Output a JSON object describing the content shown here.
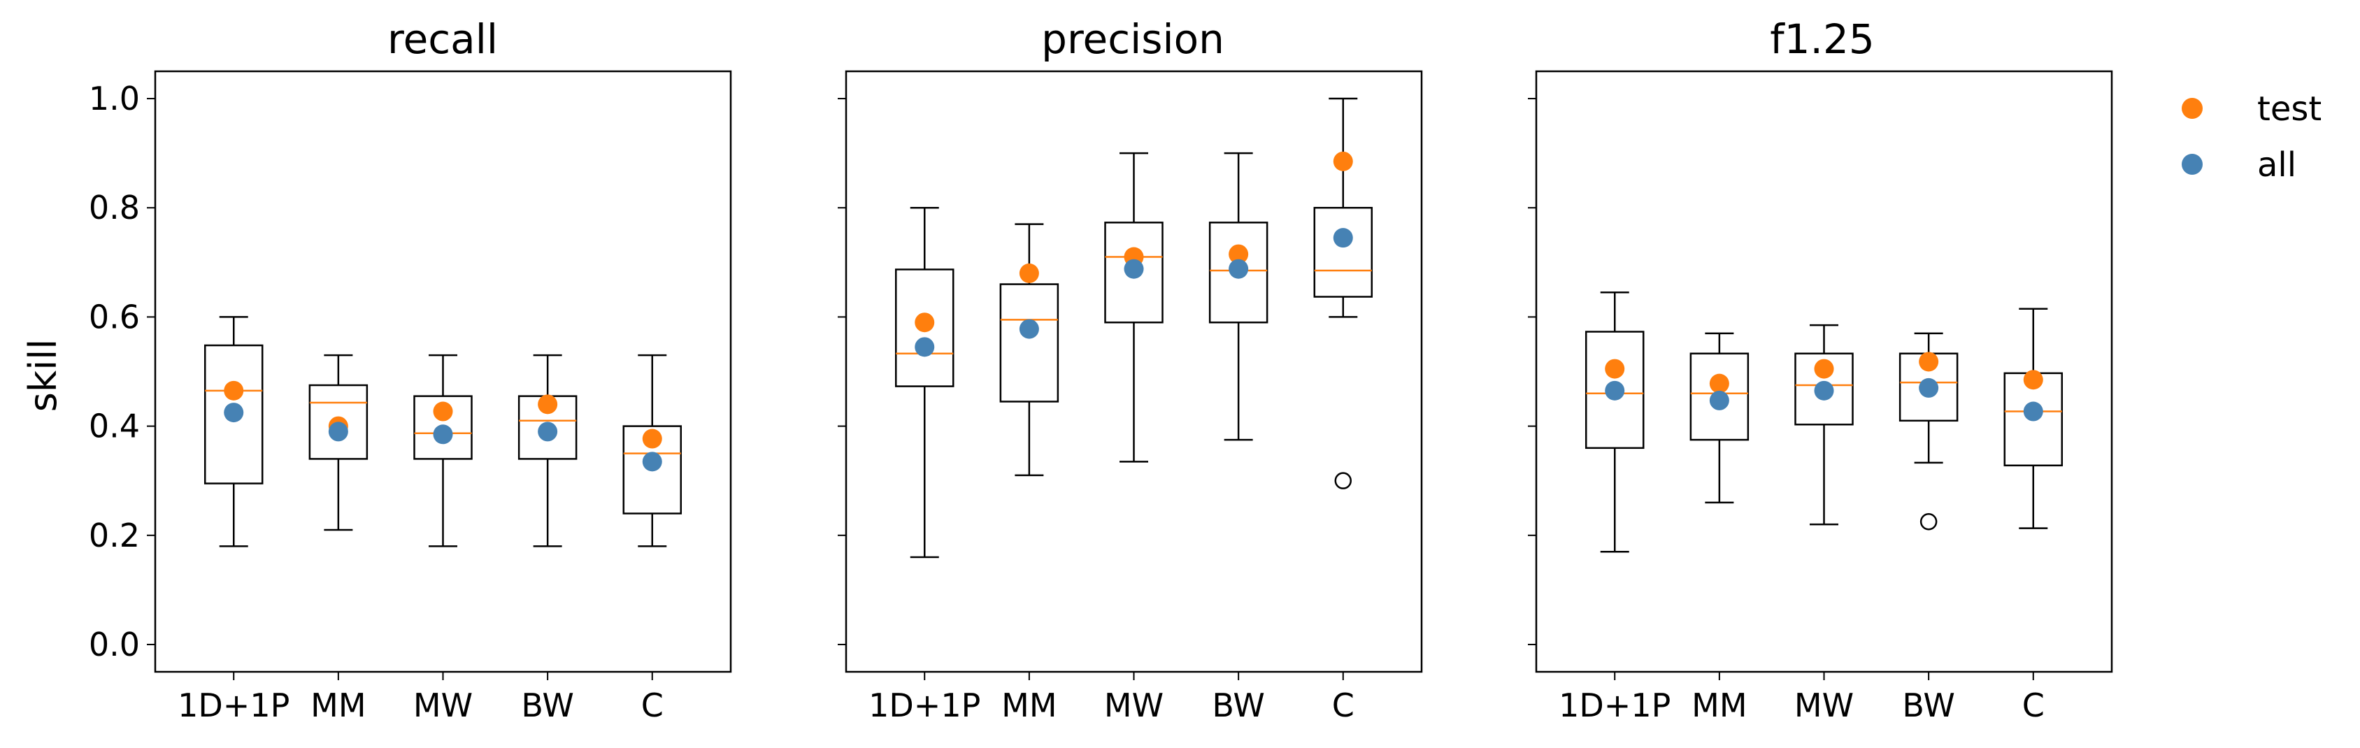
{
  "colors": {
    "test": "#ff7f0e",
    "all": "#4682b4",
    "median": "#ff7f0e",
    "box": "#000000"
  },
  "legend": {
    "position": "right",
    "entries": [
      {
        "name": "test",
        "color": "#ff7f0e"
      },
      {
        "name": "all",
        "color": "#4682b4"
      }
    ]
  },
  "chart_data": [
    {
      "type": "box",
      "title": "recall",
      "ylabel": "skill",
      "ylim": [
        -0.05,
        1.05
      ],
      "yticks": [
        "0.0",
        "0.2",
        "0.4",
        "0.6",
        "0.8",
        "1.0"
      ],
      "categories": [
        "1D+1P",
        "MM",
        "MW",
        "BW",
        "C"
      ],
      "boxes": [
        {
          "whislo": 0.18,
          "q1": 0.295,
          "med": 0.465,
          "q3": 0.548,
          "whishi": 0.6,
          "fliers": []
        },
        {
          "whislo": 0.21,
          "q1": 0.34,
          "med": 0.443,
          "q3": 0.475,
          "whishi": 0.53,
          "fliers": []
        },
        {
          "whislo": 0.18,
          "q1": 0.34,
          "med": 0.387,
          "q3": 0.455,
          "whishi": 0.53,
          "fliers": []
        },
        {
          "whislo": 0.18,
          "q1": 0.34,
          "med": 0.41,
          "q3": 0.455,
          "whishi": 0.53,
          "fliers": []
        },
        {
          "whislo": 0.18,
          "q1": 0.24,
          "med": 0.35,
          "q3": 0.4,
          "whishi": 0.53,
          "fliers": []
        }
      ],
      "series": [
        {
          "name": "test",
          "values": [
            0.465,
            0.4,
            0.427,
            0.44,
            0.377
          ]
        },
        {
          "name": "all",
          "values": [
            0.425,
            0.39,
            0.385,
            0.39,
            0.335
          ]
        }
      ]
    },
    {
      "type": "box",
      "title": "precision",
      "ylim": [
        -0.05,
        1.05
      ],
      "categories": [
        "1D+1P",
        "MM",
        "MW",
        "BW",
        "C"
      ],
      "boxes": [
        {
          "whislo": 0.16,
          "q1": 0.473,
          "med": 0.533,
          "q3": 0.687,
          "whishi": 0.8,
          "fliers": []
        },
        {
          "whislo": 0.31,
          "q1": 0.445,
          "med": 0.595,
          "q3": 0.66,
          "whishi": 0.77,
          "fliers": []
        },
        {
          "whislo": 0.335,
          "q1": 0.59,
          "med": 0.71,
          "q3": 0.773,
          "whishi": 0.9,
          "fliers": []
        },
        {
          "whislo": 0.375,
          "q1": 0.59,
          "med": 0.685,
          "q3": 0.773,
          "whishi": 0.9,
          "fliers": []
        },
        {
          "whislo": 0.6,
          "q1": 0.637,
          "med": 0.685,
          "q3": 0.8,
          "whishi": 1.0,
          "fliers": [
            0.3
          ]
        }
      ],
      "series": [
        {
          "name": "test",
          "values": [
            0.59,
            0.68,
            0.71,
            0.715,
            0.885
          ]
        },
        {
          "name": "all",
          "values": [
            0.545,
            0.578,
            0.688,
            0.688,
            0.745
          ]
        }
      ]
    },
    {
      "type": "box",
      "title": "f1.25",
      "ylim": [
        -0.05,
        1.05
      ],
      "categories": [
        "1D+1P",
        "MM",
        "MW",
        "BW",
        "C"
      ],
      "boxes": [
        {
          "whislo": 0.17,
          "q1": 0.36,
          "med": 0.46,
          "q3": 0.573,
          "whishi": 0.645,
          "fliers": []
        },
        {
          "whislo": 0.26,
          "q1": 0.375,
          "med": 0.46,
          "q3": 0.533,
          "whishi": 0.57,
          "fliers": []
        },
        {
          "whislo": 0.22,
          "q1": 0.403,
          "med": 0.475,
          "q3": 0.533,
          "whishi": 0.585,
          "fliers": []
        },
        {
          "whislo": 0.333,
          "q1": 0.41,
          "med": 0.48,
          "q3": 0.533,
          "whishi": 0.57,
          "fliers": [
            0.225
          ]
        },
        {
          "whislo": 0.213,
          "q1": 0.328,
          "med": 0.427,
          "q3": 0.497,
          "whishi": 0.615,
          "fliers": []
        }
      ],
      "series": [
        {
          "name": "test",
          "values": [
            0.505,
            0.478,
            0.505,
            0.518,
            0.485
          ]
        },
        {
          "name": "all",
          "values": [
            0.465,
            0.447,
            0.465,
            0.47,
            0.427
          ]
        }
      ]
    }
  ]
}
